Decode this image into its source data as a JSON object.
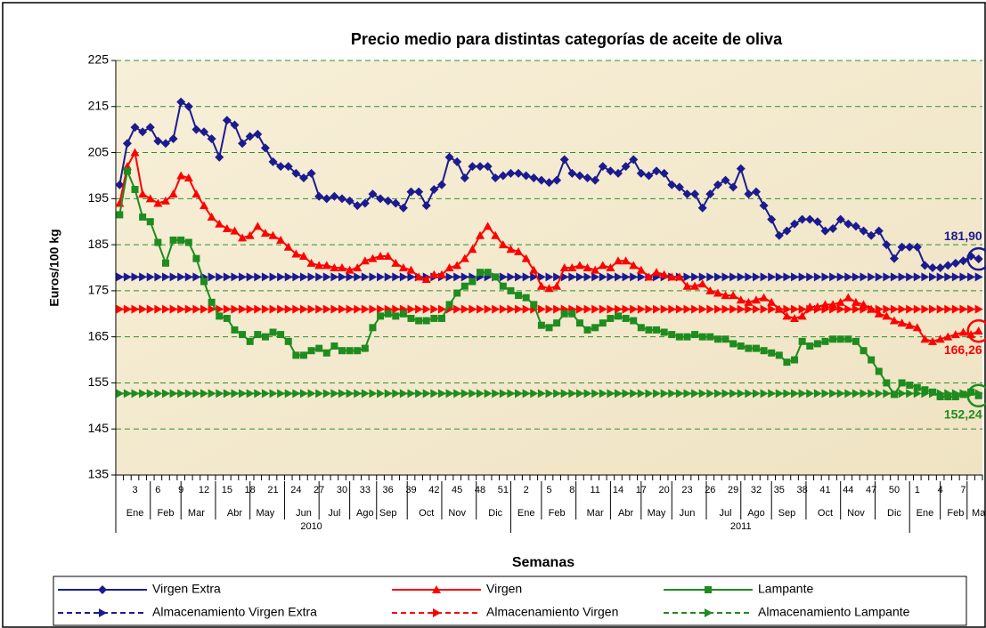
{
  "chart_data": {
    "type": "line",
    "title": "Precio medio para distintas categorías de aceite de oliva",
    "y_label": "Euros/100 kg",
    "x_label": "Semanas",
    "ylim": [
      135,
      225
    ],
    "yticks": [
      135,
      145,
      155,
      165,
      175,
      185,
      195,
      205,
      215,
      225
    ],
    "grid": true,
    "legend": "bottom",
    "categories": [
      null,
      null,
      "3",
      null,
      null,
      "6",
      null,
      null,
      "9",
      null,
      null,
      "12",
      null,
      null,
      "15",
      null,
      null,
      "18",
      null,
      null,
      "21",
      null,
      null,
      "24",
      null,
      null,
      "27",
      null,
      null,
      "30",
      null,
      null,
      "33",
      null,
      null,
      "36",
      null,
      null,
      "39",
      null,
      null,
      "42",
      null,
      null,
      "45",
      null,
      null,
      "48",
      null,
      null,
      "51",
      null,
      null,
      "2",
      null,
      null,
      "5",
      null,
      null,
      "8",
      null,
      null,
      "11",
      null,
      null,
      "14",
      null,
      null,
      "17",
      null,
      null,
      "20",
      null,
      null,
      "23",
      null,
      null,
      "26",
      null,
      null,
      "29",
      null,
      null,
      "32",
      null,
      null,
      "35",
      null,
      null,
      "38",
      null,
      null,
      "41",
      null,
      null,
      "44",
      null,
      null,
      "47",
      null,
      null,
      "50",
      null,
      null,
      "1",
      null,
      null,
      "4",
      null,
      null,
      "7",
      null,
      null
    ],
    "x_months": [
      null,
      null,
      "Ene",
      null,
      null,
      null,
      "Feb",
      null,
      null,
      null,
      "Mar",
      null,
      null,
      null,
      null,
      "Abr",
      null,
      null,
      null,
      "May",
      null,
      null,
      null,
      null,
      "Jun",
      null,
      null,
      null,
      "Jul",
      null,
      null,
      null,
      "Ago",
      null,
      null,
      "Sep",
      null,
      null,
      null,
      null,
      "Oct",
      null,
      null,
      null,
      "Nov",
      null,
      null,
      null,
      null,
      "Dic",
      null,
      null,
      null,
      "Ene",
      null,
      null,
      null,
      "Feb",
      null,
      null,
      null,
      null,
      "Mar",
      null,
      null,
      null,
      "Abr",
      null,
      null,
      null,
      "May",
      null,
      null,
      null,
      "Jun",
      null,
      null,
      null,
      null,
      "Jul",
      null,
      null,
      null,
      "Ago",
      null,
      null,
      null,
      "Sep",
      null,
      null,
      null,
      null,
      "Oct",
      null,
      null,
      null,
      "Nov",
      null,
      null,
      null,
      null,
      "Dic",
      null,
      null,
      null,
      "Ene",
      null,
      null,
      null,
      "Feb",
      null,
      null,
      "Ma"
    ],
    "x_years": [
      null,
      null,
      null,
      null,
      null,
      null,
      null,
      null,
      null,
      null,
      null,
      null,
      null,
      null,
      null,
      null,
      null,
      null,
      null,
      null,
      null,
      null,
      null,
      null,
      null,
      "2010",
      null,
      null,
      null,
      null,
      null,
      null,
      null,
      null,
      null,
      null,
      null,
      null,
      null,
      null,
      null,
      null,
      null,
      null,
      null,
      null,
      null,
      null,
      null,
      null,
      null,
      null,
      null,
      null,
      null,
      null,
      null,
      null,
      null,
      null,
      null,
      null,
      null,
      null,
      null,
      null,
      null,
      null,
      null,
      null,
      null,
      null,
      null,
      null,
      null,
      null,
      null,
      null,
      null,
      null,
      null,
      "2011",
      null,
      null,
      null,
      null,
      null,
      null,
      null,
      null,
      null,
      null,
      null,
      null,
      null,
      null,
      null,
      null,
      null,
      null,
      null,
      null,
      null,
      null,
      null,
      null,
      null,
      null,
      null,
      null,
      null,
      null,
      null
    ],
    "series": [
      {
        "name": "Virgen Extra",
        "color": "#1b1b8f",
        "marker": "diamond",
        "dashed": false,
        "values": [
          198,
          207,
          210.5,
          209.5,
          210.5,
          207.5,
          207,
          208,
          216,
          215,
          210,
          209.5,
          208,
          204,
          212,
          211,
          207,
          208.5,
          209,
          206,
          203,
          202,
          202,
          200.5,
          199.5,
          200.5,
          195.5,
          195,
          195.5,
          195,
          194.5,
          193.5,
          194,
          196,
          195,
          194.5,
          194,
          193,
          196.5,
          196.5,
          193.5,
          197,
          198,
          204,
          203,
          199.5,
          202,
          202,
          202,
          199.5,
          200,
          200.5,
          200.5,
          200,
          199.5,
          199,
          198.5,
          199,
          203.5,
          200.5,
          200,
          199.5,
          199,
          202,
          201,
          200.5,
          202,
          203.5,
          200.5,
          200,
          201,
          200.5,
          198,
          197.5,
          196,
          196,
          193,
          196,
          198,
          199,
          197.5,
          201.5,
          196,
          196.5,
          193.5,
          190.5,
          187,
          188,
          189.5,
          190.5,
          190.5,
          190,
          188,
          188.5,
          190.5,
          189.5,
          189,
          188,
          187,
          188,
          185,
          182,
          184.5,
          184.5,
          184.5,
          180.5,
          180,
          180,
          180.5,
          181,
          181.5,
          182.5,
          181.9
        ]
      },
      {
        "name": "Virgen",
        "color": "#ff0000",
        "marker": "triangle",
        "dashed": false,
        "values": [
          194,
          202,
          205,
          196,
          195,
          194,
          194.5,
          196,
          200,
          199.5,
          196,
          193.5,
          191,
          189.5,
          188.5,
          188,
          186.5,
          187,
          189,
          187.5,
          187,
          186,
          184.5,
          183,
          182.5,
          181,
          180.5,
          180.5,
          180,
          180,
          179.5,
          180,
          181.5,
          182,
          182.5,
          182.5,
          181,
          180,
          179.5,
          178,
          177.5,
          178.5,
          178.5,
          180,
          180.5,
          182,
          184,
          187,
          189,
          187,
          185,
          184,
          183.5,
          182,
          179.5,
          176,
          175.5,
          176,
          180,
          180,
          180.5,
          180,
          179.5,
          180.5,
          180,
          181.5,
          181.5,
          180.5,
          179.5,
          178,
          179,
          178.5,
          178,
          178,
          176,
          176,
          176.5,
          175,
          174.5,
          174,
          174,
          173,
          172.5,
          173,
          173.5,
          172.5,
          171,
          169.5,
          169,
          169.5,
          171.5,
          171.5,
          172,
          172,
          172.5,
          173.5,
          172.5,
          172,
          171,
          170,
          169.5,
          168.5,
          168,
          167.5,
          167,
          164.5,
          164,
          164.5,
          165,
          165.5,
          166,
          165.5,
          166.26
        ]
      },
      {
        "name": "Lampante",
        "color": "#1e8c1e",
        "marker": "square",
        "dashed": false,
        "values": [
          191.5,
          201,
          197,
          191,
          190,
          185.5,
          181,
          186,
          186,
          185.5,
          182,
          177,
          172.5,
          169.5,
          169,
          166.5,
          165.5,
          164,
          165.5,
          165,
          166,
          165.5,
          164,
          161,
          161,
          162,
          162.5,
          161.5,
          163,
          162,
          162,
          162,
          162.5,
          167,
          169.5,
          170,
          169.5,
          170,
          169,
          168.5,
          168.5,
          169,
          169,
          172,
          174.5,
          176,
          177,
          179,
          179,
          178,
          176,
          175,
          174,
          173.5,
          172,
          167.5,
          167,
          168,
          170,
          170,
          168,
          166.5,
          167,
          168,
          169,
          169.5,
          169,
          168.5,
          167,
          166.5,
          166.5,
          166,
          165.5,
          165,
          165,
          165.5,
          165,
          165,
          164.5,
          164.5,
          163.5,
          163,
          162.5,
          162.5,
          162,
          161.5,
          161,
          159.5,
          160,
          164,
          163,
          163.5,
          164,
          164.5,
          164.5,
          164.5,
          164,
          162,
          160,
          157.5,
          155,
          152.5,
          155,
          154.5,
          154,
          153.5,
          153,
          152,
          152,
          152,
          152.5,
          153,
          152.24
        ]
      },
      {
        "name": "Almacenamiento Virgen Extra",
        "color": "#1b1b8f",
        "marker": "arrow",
        "dashed": true,
        "values": [
          178,
          178,
          178,
          178,
          178,
          178,
          178,
          178,
          178,
          178,
          178,
          178,
          178,
          178,
          178,
          178,
          178,
          178,
          178,
          178,
          178,
          178,
          178,
          178,
          178,
          178,
          178,
          178,
          178,
          178,
          178,
          178,
          178,
          178,
          178,
          178,
          178,
          178,
          178,
          178,
          178,
          178,
          178,
          178,
          178,
          178,
          178,
          178,
          178,
          178,
          178,
          178,
          178,
          178,
          178,
          178,
          178,
          178,
          178,
          178,
          178,
          178,
          178,
          178,
          178,
          178,
          178,
          178,
          178,
          178,
          178,
          178,
          178,
          178,
          178,
          178,
          178,
          178,
          178,
          178,
          178,
          178,
          178,
          178,
          178,
          178,
          178,
          178,
          178,
          178,
          178,
          178,
          178,
          178,
          178,
          178,
          178,
          178,
          178,
          178,
          178,
          178,
          178,
          178,
          178,
          178,
          178,
          178,
          178,
          178,
          178,
          178,
          178
        ]
      },
      {
        "name": "Almacenamiento Virgen",
        "color": "#ff0000",
        "marker": "arrow",
        "dashed": true,
        "values": [
          171,
          171,
          171,
          171,
          171,
          171,
          171,
          171,
          171,
          171,
          171,
          171,
          171,
          171,
          171,
          171,
          171,
          171,
          171,
          171,
          171,
          171,
          171,
          171,
          171,
          171,
          171,
          171,
          171,
          171,
          171,
          171,
          171,
          171,
          171,
          171,
          171,
          171,
          171,
          171,
          171,
          171,
          171,
          171,
          171,
          171,
          171,
          171,
          171,
          171,
          171,
          171,
          171,
          171,
          171,
          171,
          171,
          171,
          171,
          171,
          171,
          171,
          171,
          171,
          171,
          171,
          171,
          171,
          171,
          171,
          171,
          171,
          171,
          171,
          171,
          171,
          171,
          171,
          171,
          171,
          171,
          171,
          171,
          171,
          171,
          171,
          171,
          171,
          171,
          171,
          171,
          171,
          171,
          171,
          171,
          171,
          171,
          171,
          171,
          171,
          171,
          171,
          171,
          171,
          171,
          171,
          171,
          171,
          171,
          171,
          171,
          171,
          171
        ]
      },
      {
        "name": "Almacenamiento Lampante",
        "color": "#1e8c1e",
        "marker": "arrow",
        "dashed": true,
        "values": [
          152.7,
          152.7,
          152.7,
          152.7,
          152.7,
          152.7,
          152.7,
          152.7,
          152.7,
          152.7,
          152.7,
          152.7,
          152.7,
          152.7,
          152.7,
          152.7,
          152.7,
          152.7,
          152.7,
          152.7,
          152.7,
          152.7,
          152.7,
          152.7,
          152.7,
          152.7,
          152.7,
          152.7,
          152.7,
          152.7,
          152.7,
          152.7,
          152.7,
          152.7,
          152.7,
          152.7,
          152.7,
          152.7,
          152.7,
          152.7,
          152.7,
          152.7,
          152.7,
          152.7,
          152.7,
          152.7,
          152.7,
          152.7,
          152.7,
          152.7,
          152.7,
          152.7,
          152.7,
          152.7,
          152.7,
          152.7,
          152.7,
          152.7,
          152.7,
          152.7,
          152.7,
          152.7,
          152.7,
          152.7,
          152.7,
          152.7,
          152.7,
          152.7,
          152.7,
          152.7,
          152.7,
          152.7,
          152.7,
          152.7,
          152.7,
          152.7,
          152.7,
          152.7,
          152.7,
          152.7,
          152.7,
          152.7,
          152.7,
          152.7,
          152.7,
          152.7,
          152.7,
          152.7,
          152.7,
          152.7,
          152.7,
          152.7,
          152.7,
          152.7,
          152.7,
          152.7,
          152.7,
          152.7,
          152.7,
          152.7,
          152.7,
          152.7,
          152.7,
          152.7,
          152.7,
          152.7,
          152.7,
          152.7,
          152.7,
          152.7,
          152.7,
          152.7,
          152.7
        ]
      }
    ],
    "annotations": [
      {
        "label": "181,90",
        "value": 181.9
      },
      {
        "label": "166,26",
        "value": 166.26
      },
      {
        "label": "152,24",
        "value": 152.24
      }
    ]
  }
}
